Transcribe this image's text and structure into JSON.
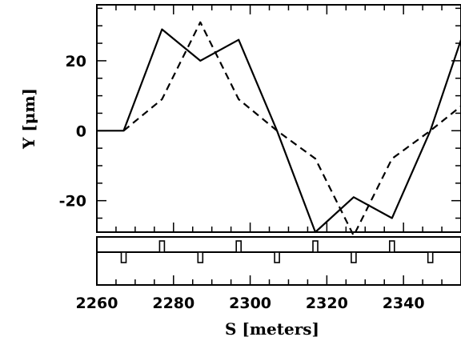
{
  "chart_data": {
    "type": "line",
    "xlabel": "S [meters]",
    "ylabel": "Y [μm]",
    "xlim": [
      2260,
      2355
    ],
    "ylim": [
      -29,
      36
    ],
    "x_ticks": [
      "2260",
      "2280",
      "2300",
      "2320",
      "2340"
    ],
    "y_ticks": [
      "20",
      "0",
      "-20"
    ],
    "x_tick_values": [
      2260,
      2280,
      2300,
      2320,
      2340
    ],
    "y_tick_values": [
      20,
      0,
      -20
    ],
    "grid": false,
    "series": [
      {
        "style": "solid",
        "x": [
          2260,
          2267,
          2277,
          2287,
          2297,
          2307,
          2317,
          2327,
          2337,
          2347,
          2355
        ],
        "y": [
          0,
          0,
          29,
          20,
          26,
          0,
          -29,
          -19,
          -25,
          0,
          26
        ]
      },
      {
        "style": "dashed",
        "x": [
          2267,
          2277,
          2287,
          2297,
          2307,
          2317,
          2327,
          2337,
          2347,
          2355
        ],
        "y": [
          0,
          9,
          31,
          9,
          0,
          -8,
          -30,
          -8,
          0,
          7
        ]
      }
    ],
    "lattice": {
      "upper_markers": [
        2277,
        2297,
        2317,
        2337
      ],
      "lower_markers": [
        2267,
        2287,
        2307,
        2327,
        2347
      ]
    }
  }
}
